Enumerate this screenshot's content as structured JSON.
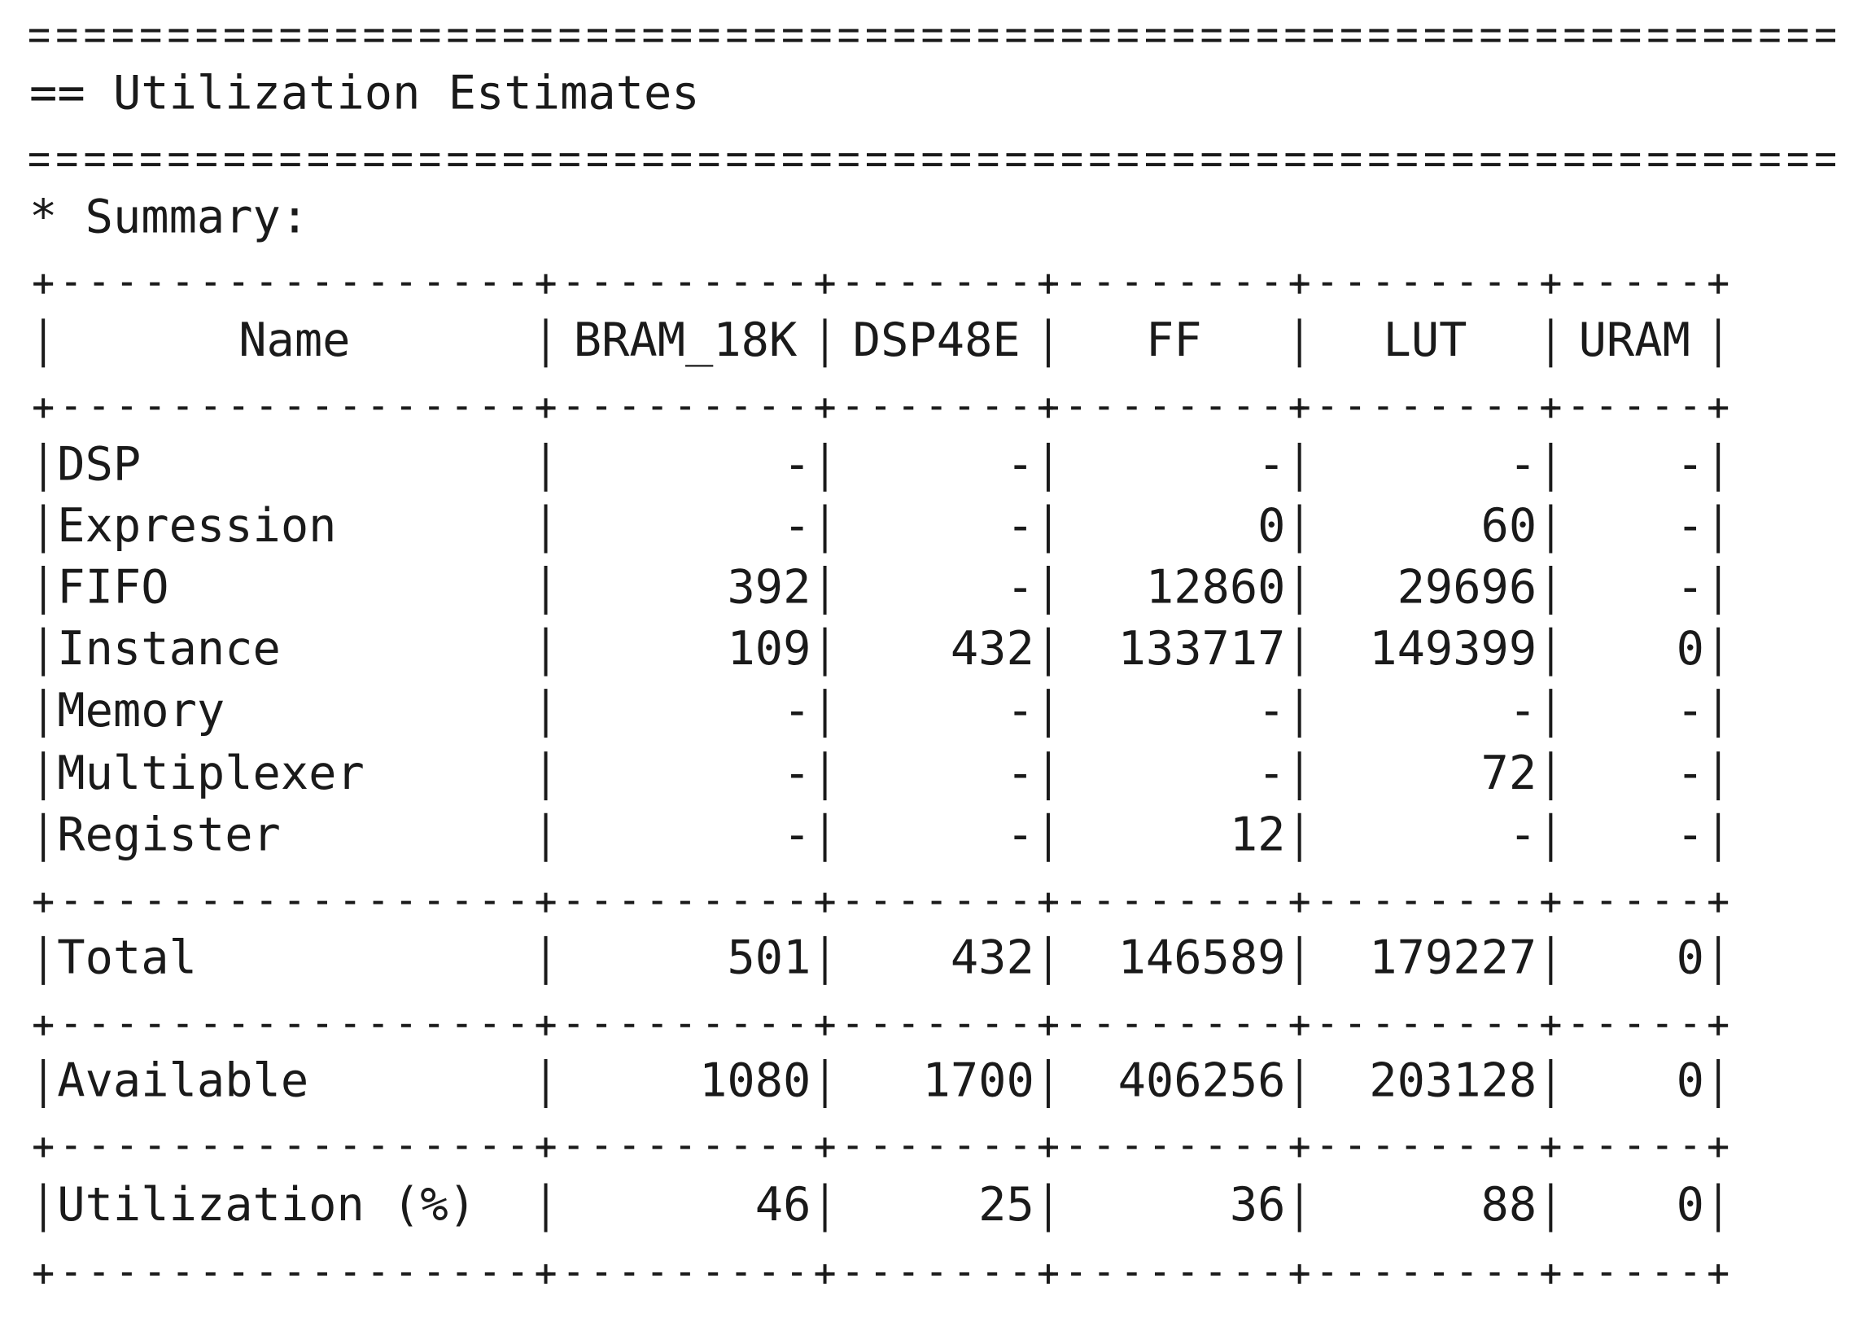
{
  "header": {
    "title": "== Utilization Estimates",
    "summary": "* Summary:"
  },
  "table": {
    "columns": [
      "Name",
      "BRAM_18K",
      "DSP48E",
      "FF",
      "LUT",
      "URAM"
    ],
    "rows": [
      [
        "DSP",
        "-",
        "-",
        "-",
        "-",
        "-"
      ],
      [
        "Expression",
        "-",
        "-",
        0,
        60,
        "-"
      ],
      [
        "FIFO",
        392,
        "-",
        12860,
        29696,
        "-"
      ],
      [
        "Instance",
        109,
        432,
        133717,
        149399,
        0
      ],
      [
        "Memory",
        "-",
        "-",
        "-",
        "-",
        "-"
      ],
      [
        "Multiplexer",
        "-",
        "-",
        "-",
        72,
        "-"
      ],
      [
        "Register",
        "-",
        "-",
        12,
        "-",
        "-"
      ],
      [
        "Total",
        501,
        432,
        146589,
        179227,
        0
      ],
      [
        "Available",
        1080,
        1700,
        406256,
        203128,
        0
      ],
      [
        "Utilization (%)",
        46,
        25,
        36,
        88,
        0
      ]
    ]
  }
}
